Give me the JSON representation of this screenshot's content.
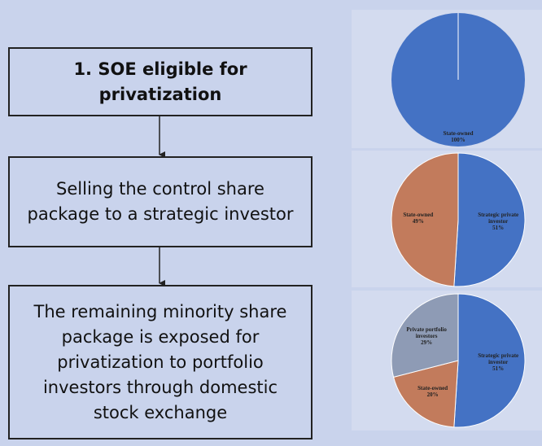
{
  "nodes": [
    {
      "label": "1. SOE eligible for privatization"
    },
    {
      "label": "Selling the control share package to a strategic investor"
    },
    {
      "label": "The remaining minority share package is exposed for privatization to portfolio investors through domestic stock exchange"
    }
  ],
  "chart_data": [
    {
      "type": "pie",
      "categories": [
        "State-owned"
      ],
      "values": [
        100
      ],
      "value_labels": [
        "100%"
      ],
      "colors": [
        "#4472c4"
      ]
    },
    {
      "type": "pie",
      "categories": [
        "Strategic private investor",
        "State-owned"
      ],
      "values": [
        51,
        49
      ],
      "value_labels": [
        "51%",
        "49%"
      ],
      "colors": [
        "#4472c4",
        "#c27b5c"
      ]
    },
    {
      "type": "pie",
      "categories": [
        "Strategic private investor",
        "State-owned",
        "Private portfolio investors"
      ],
      "values": [
        51,
        20,
        29
      ],
      "value_labels": [
        "51%",
        "20%",
        "29%"
      ],
      "colors": [
        "#4472c4",
        "#c27b5c",
        "#8e9bb5"
      ]
    }
  ]
}
